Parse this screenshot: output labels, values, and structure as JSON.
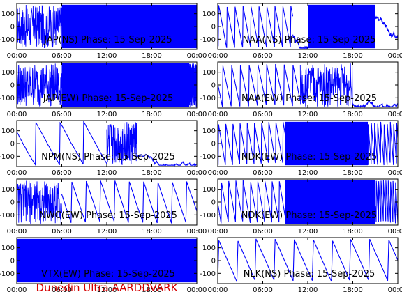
{
  "footer": "Dunedin Ultra AARDDVARK",
  "chart_data": [
    {
      "type": "line",
      "title": "JAP(NS) Phase: 15-Sep-2025",
      "xticks": [
        "00:00",
        "06:00",
        "12:00",
        "18:00",
        "00:00"
      ],
      "yticks": [
        "100",
        "0",
        "-100"
      ],
      "xlim": [
        0,
        24
      ],
      "ylim": [
        -180,
        180
      ],
      "color": "#0000ff",
      "pattern": "dense",
      "segments": [
        {
          "x0": 0,
          "x1": 6,
          "mode": "noisy"
        },
        {
          "x0": 6,
          "x1": 24,
          "mode": "fill"
        }
      ]
    },
    {
      "type": "line",
      "title": "NAA(NS) Phase: 15-Sep-2025",
      "xticks": [
        "00:00",
        "06:00",
        "12:00",
        "18:00",
        "00:00"
      ],
      "yticks": [
        "100",
        "0",
        "-100"
      ],
      "xlim": [
        0,
        24
      ],
      "ylim": [
        -180,
        180
      ],
      "color": "#0000ff",
      "pattern": "sawtooth",
      "segments": [
        {
          "x0": 0,
          "x1": 10,
          "mode": "saw"
        },
        {
          "x0": 10,
          "x1": 12,
          "mode": "smooth"
        },
        {
          "x0": 12,
          "x1": 21,
          "mode": "fill"
        },
        {
          "x0": 21,
          "x1": 24,
          "mode": "smooth"
        }
      ]
    },
    {
      "type": "line",
      "title": "JAP(EW) Phase: 15-Sep-2025",
      "xticks": [
        "00:00",
        "06:00",
        "12:00",
        "18:00",
        "00:00"
      ],
      "yticks": [
        "100",
        "0",
        "-100"
      ],
      "xlim": [
        0,
        24
      ],
      "ylim": [
        -180,
        180
      ],
      "color": "#0000ff",
      "pattern": "dense",
      "segments": [
        {
          "x0": 0,
          "x1": 6,
          "mode": "noisy"
        },
        {
          "x0": 6,
          "x1": 23,
          "mode": "fill"
        },
        {
          "x0": 23,
          "x1": 24,
          "mode": "noisy"
        }
      ]
    },
    {
      "type": "line",
      "title": "NAA(EW) Phase: 15-Sep-2025",
      "xticks": [
        "00:00",
        "06:00",
        "12:00",
        "18:00",
        "00:00"
      ],
      "yticks": [
        "100",
        "0",
        "-100"
      ],
      "xlim": [
        0,
        24
      ],
      "ylim": [
        -180,
        180
      ],
      "color": "#0000ff",
      "pattern": "sawtooth",
      "segments": [
        {
          "x0": 0,
          "x1": 11,
          "mode": "saw"
        },
        {
          "x0": 11,
          "x1": 18,
          "mode": "noisy"
        },
        {
          "x0": 18,
          "x1": 24,
          "mode": "smooth"
        }
      ]
    },
    {
      "type": "line",
      "title": "NPM(NS) Phase: 15-Sep-2025",
      "xticks": [
        "00:00",
        "06:00",
        "12:00",
        "18:00",
        "00:00"
      ],
      "yticks": [
        "100",
        "0",
        "-100"
      ],
      "xlim": [
        0,
        24
      ],
      "ylim": [
        -180,
        180
      ],
      "color": "#0000ff",
      "pattern": "slow",
      "segments": [
        {
          "x0": 0,
          "x1": 12,
          "mode": "saw"
        },
        {
          "x0": 12,
          "x1": 16,
          "mode": "noisy"
        },
        {
          "x0": 16,
          "x1": 24,
          "mode": "smooth"
        }
      ]
    },
    {
      "type": "line",
      "title": "NDK(EW) Phase: 15-Sep-2025",
      "xticks": [
        "00:00",
        "06:00",
        "12:00",
        "18:00",
        "00:00"
      ],
      "yticks": [
        "100",
        "0",
        "-100"
      ],
      "xlim": [
        0,
        24
      ],
      "ylim": [
        -180,
        180
      ],
      "color": "#0000ff",
      "pattern": "sawtooth",
      "segments": [
        {
          "x0": 0,
          "x1": 9,
          "mode": "saw"
        },
        {
          "x0": 9,
          "x1": 20,
          "mode": "fill"
        },
        {
          "x0": 20,
          "x1": 24,
          "mode": "saw"
        }
      ]
    },
    {
      "type": "line",
      "title": "NWC(EW) Phase: 15-Sep-2025",
      "xticks": [
        "00:00",
        "06:00",
        "12:00",
        "18:00",
        "00:00"
      ],
      "yticks": [
        "100",
        "0",
        "-100"
      ],
      "xlim": [
        0,
        24
      ],
      "ylim": [
        -180,
        180
      ],
      "color": "#0000ff",
      "pattern": "sawtooth",
      "segments": [
        {
          "x0": 0,
          "x1": 6,
          "mode": "noisy"
        },
        {
          "x0": 6,
          "x1": 24,
          "mode": "saw"
        }
      ]
    },
    {
      "type": "line",
      "title": "NDK(EW) Phase: 15-Sep-2025",
      "xticks": [
        "00:00",
        "06:00",
        "12:00",
        "18:00",
        "00:00"
      ],
      "yticks": [
        "100",
        "0",
        "-100"
      ],
      "xlim": [
        0,
        24
      ],
      "ylim": [
        -180,
        180
      ],
      "color": "#0000ff",
      "pattern": "sawtooth",
      "segments": [
        {
          "x0": 0,
          "x1": 9,
          "mode": "saw"
        },
        {
          "x0": 9,
          "x1": 21,
          "mode": "fill"
        },
        {
          "x0": 21,
          "x1": 24,
          "mode": "saw"
        }
      ]
    },
    {
      "type": "line",
      "title": "VTX(EW) Phase: 15-Sep-2025",
      "xticks": [
        "00:00",
        "06:00",
        "12:00",
        "18:00",
        "00:00"
      ],
      "yticks": [
        "100",
        "0",
        "-100"
      ],
      "xlim": [
        0,
        24
      ],
      "ylim": [
        -180,
        180
      ],
      "color": "#0000ff",
      "pattern": "dense",
      "segments": [
        {
          "x0": 0,
          "x1": 24,
          "mode": "fill"
        }
      ]
    },
    {
      "type": "line",
      "title": "NLK(NS) Phase: 15-Sep-2025",
      "xticks": [
        "00:00",
        "06:00",
        "12:00",
        "18:00",
        "00:00"
      ],
      "yticks": [
        "100",
        "0",
        "-100"
      ],
      "xlim": [
        0,
        24
      ],
      "ylim": [
        -180,
        180
      ],
      "color": "#0000ff",
      "pattern": "sawtooth",
      "segments": [
        {
          "x0": 0,
          "x1": 24,
          "mode": "saw"
        }
      ]
    }
  ]
}
